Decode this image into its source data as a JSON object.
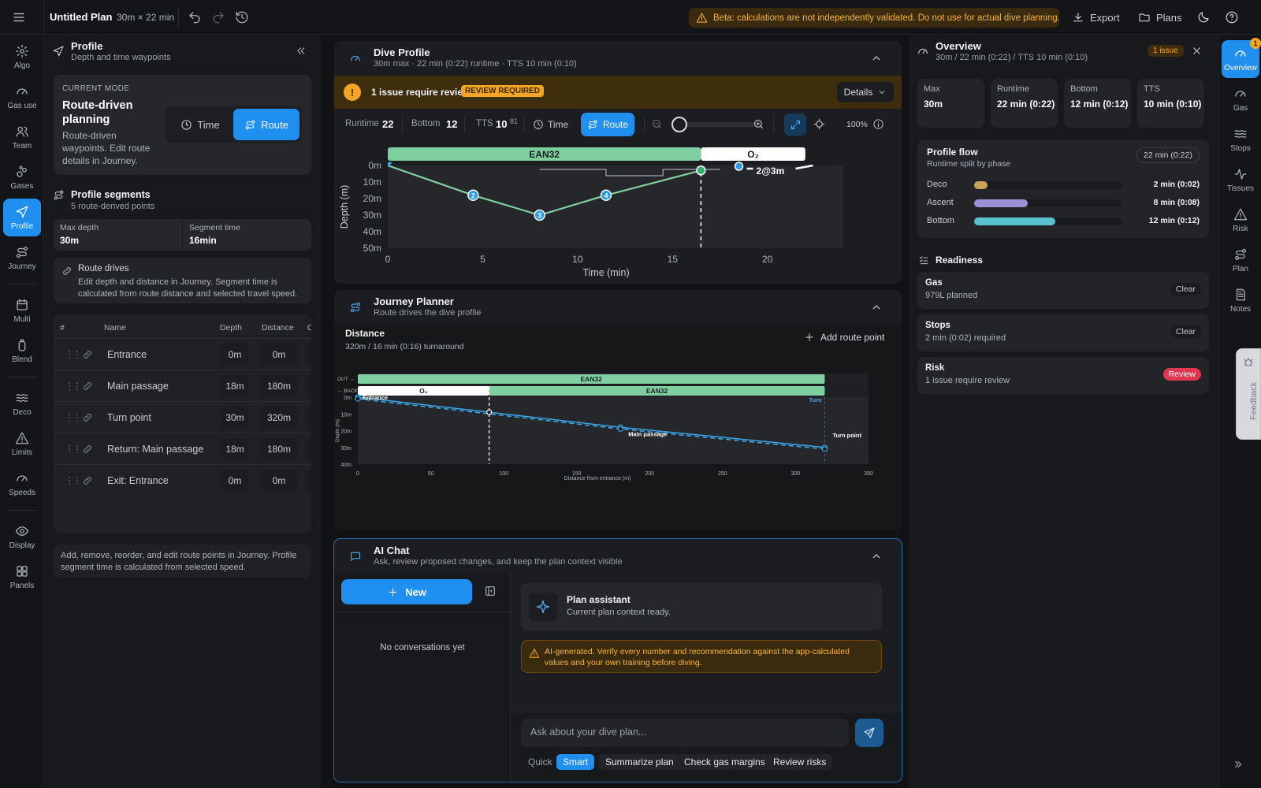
{
  "topbar": {
    "title": "Untitled Plan",
    "plan_meta": "30m × 22 min",
    "beta_warning": "Beta: calculations are not independently validated. Do not use for actual dive planning.",
    "export_label": "Export",
    "plans_label": "Plans"
  },
  "leftnav": [
    {
      "label": "Algo",
      "icon": "gear-icon"
    },
    {
      "label": "Gas use",
      "icon": "gauge-icon"
    },
    {
      "label": "Team",
      "icon": "team-icon"
    },
    {
      "label": "Gases",
      "icon": "bubbles-icon"
    },
    {
      "label": "Profile",
      "icon": "navigation-icon",
      "active": true
    },
    {
      "label": "Journey",
      "icon": "route-icon"
    },
    {
      "label": "Multi",
      "icon": "calendar-icon"
    },
    {
      "label": "Blend",
      "icon": "cylinder-icon"
    },
    {
      "label": "Deco",
      "icon": "waves-icon"
    },
    {
      "label": "Limits",
      "icon": "warning-icon"
    },
    {
      "label": "Speeds",
      "icon": "gauge-icon"
    },
    {
      "label": "Display",
      "icon": "eye-icon"
    },
    {
      "label": "Panels",
      "icon": "grid-icon"
    }
  ],
  "profile_panel": {
    "title": "Profile",
    "subtitle": "Depth and time waypoints",
    "mode_label": "CURRENT MODE",
    "mode_title": "Route-driven planning",
    "mode_desc": "Route-driven waypoints. Edit route details in Journey.",
    "time_btn": "Time",
    "route_btn": "Route",
    "segments_title": "Profile segments",
    "segments_sub": "5 route-derived points",
    "max_depth_label": "Max depth",
    "max_depth_value": "30m",
    "segment_time_label": "Segment time",
    "segment_time_value": "16min",
    "route_drives_title": "Route drives",
    "route_drives_desc": "Edit depth and distance in Journey. Segment time is calculated from route distance and selected travel speed.",
    "table_headers": {
      "num": "#",
      "name": "Name",
      "depth": "Depth",
      "distance": "Distance",
      "extra": "C"
    },
    "rows": [
      {
        "name": "Entrance",
        "depth": "0m",
        "distance": "0m"
      },
      {
        "name": "Main passage",
        "depth": "18m",
        "distance": "180m"
      },
      {
        "name": "Turn point",
        "depth": "30m",
        "distance": "320m"
      },
      {
        "name": "Return: Main passage",
        "depth": "18m",
        "distance": "180m"
      },
      {
        "name": "Exit: Entrance",
        "depth": "0m",
        "distance": "0m"
      }
    ],
    "footer_note": "Add, remove, reorder, and edit route points in Journey. Profile segment time is calculated from selected speed."
  },
  "dive_profile": {
    "title": "Dive Profile",
    "subtitle": "30m max · 22 min (0:22) runtime · TTS 10 min (0:10)",
    "issue_text": "1 issue require review",
    "review_badge": "REVIEW REQUIRED",
    "details_btn": "Details",
    "runtime_label": "Runtime",
    "runtime_value": "22",
    "bottom_label": "Bottom",
    "bottom_value": "12",
    "tts_label": "TTS",
    "tts_value": "10",
    "tts_sup": "81",
    "time_btn": "Time",
    "route_btn": "Route",
    "zoom_pct": "100%",
    "gas_bar": [
      {
        "label": "EAN32",
        "from": 0,
        "to": 16.5
      },
      {
        "label": "O₂",
        "from": 16.5,
        "to": 22
      }
    ],
    "stop_label": "2@3m"
  },
  "chart_data": [
    {
      "type": "line",
      "title": "",
      "xlabel": "Time (min)",
      "ylabel": "Depth (m)",
      "xlim": [
        0,
        24
      ],
      "ylim": [
        0,
        50
      ],
      "y_inverted": true,
      "x_ticks": [
        "0",
        "5",
        "10",
        "15",
        "20"
      ],
      "y_ticks": [
        "0m",
        "10m",
        "20m",
        "30m",
        "40m",
        "50m"
      ],
      "series": [
        {
          "values": [
            [
              0,
              0
            ],
            [
              4.5,
              18
            ],
            [
              8,
              30
            ],
            [
              11.5,
              18
            ],
            [
              16.5,
              3
            ]
          ],
          "point_labels": [
            "",
            "2",
            "3",
            "4",
            ""
          ]
        }
      ],
      "markers": [
        {
          "label": "2@3m",
          "x": 18.5,
          "y": 3
        }
      ],
      "vline_x": 16.5
    },
    {
      "type": "line",
      "title": "Distance",
      "xlabel": "Distance from entrance (m)",
      "ylabel": "Depth (m)",
      "xlim": [
        0,
        350
      ],
      "ylim": [
        0,
        40
      ],
      "y_inverted": true,
      "x_ticks": [
        "0",
        "50",
        "100",
        "150",
        "200",
        "250",
        "300",
        "350"
      ],
      "y_ticks": [
        "0m",
        "10m",
        "20m",
        "30m",
        "40m"
      ],
      "series": [
        {
          "name": "OUT",
          "values": [
            [
              0,
              0
            ],
            [
              180,
              18
            ],
            [
              320,
              30
            ]
          ]
        },
        {
          "name": "BACK",
          "values": [
            [
              0,
              1
            ],
            [
              180,
              19
            ],
            [
              320,
              31
            ]
          ]
        }
      ],
      "annotations": [
        {
          "label": "Entrance",
          "x": 0,
          "y": 0
        },
        {
          "label": "Main passage",
          "x": 180,
          "y": 18
        },
        {
          "label": "Turn point",
          "x": 320,
          "y": 30
        },
        {
          "label": "Turn",
          "x": 320,
          "y": 0
        }
      ],
      "gas_bands": [
        {
          "row": "OUT",
          "label": "EAN32",
          "from": 0,
          "to": 320
        },
        {
          "row": "BACK",
          "label": "O₂",
          "from": 0,
          "to": 90
        },
        {
          "row": "BACK",
          "label": "EAN32",
          "from": 90,
          "to": 320
        }
      ],
      "vline_x": 90
    }
  ],
  "journey": {
    "title": "Journey Planner",
    "subtitle": "Route drives the dive profile",
    "distance_title": "Distance",
    "distance_sub": "320m / 16 min (0:16) turnaround",
    "add_point": "Add route point",
    "row_out": "OUT →",
    "row_back": "← BACK"
  },
  "ai_chat": {
    "title": "AI Chat",
    "subtitle": "Ask, review proposed changes, and keep the plan context visible",
    "new_btn": "New",
    "no_conversations": "No conversations yet",
    "assistant_title": "Plan assistant",
    "assistant_sub": "Current plan context ready.",
    "ai_warning": "AI-generated. Verify every number and recommendation against the app-calculated values and your own training before diving.",
    "input_placeholder": "Ask about your dive plan...",
    "quick_label": "Quick",
    "smart_label": "Smart",
    "chips": [
      "Summarize plan",
      "Check gas margins",
      "Review risks"
    ]
  },
  "overview": {
    "title": "Overview",
    "subtitle": "30m / 22 min (0:22) / TTS 10 min (0:10)",
    "issue_badge": "1 issue",
    "stats": [
      {
        "label": "Max",
        "value": "30m"
      },
      {
        "label": "Runtime",
        "value": "22 min (0:22)"
      },
      {
        "label": "Bottom",
        "value": "12 min (0:12)"
      },
      {
        "label": "TTS",
        "value": "10 min (0:10)"
      }
    ],
    "flow_title": "Profile flow",
    "flow_sub": "Runtime split by phase",
    "flow_badge": "22 min (0:22)",
    "flow_rows": [
      {
        "label": "Deco",
        "value": "2 min (0:02)",
        "fraction": 0.09,
        "color": "#c9a25a"
      },
      {
        "label": "Ascent",
        "value": "8 min (0:08)",
        "fraction": 0.36,
        "color": "#9b8fd6"
      },
      {
        "label": "Bottom",
        "value": "12 min (0:12)",
        "fraction": 0.55,
        "color": "#58c3cf"
      }
    ],
    "readiness_title": "Readiness",
    "readiness": [
      {
        "title": "Gas",
        "sub": "979L planned",
        "badge": "Clear",
        "kind": "clear"
      },
      {
        "title": "Stops",
        "sub": "2 min (0:02) required",
        "badge": "Clear",
        "kind": "clear"
      },
      {
        "title": "Risk",
        "sub": "1 issue require review",
        "badge": "Review",
        "kind": "review"
      }
    ]
  },
  "rightnav": [
    {
      "label": "Overview",
      "icon": "gauge-icon",
      "active": true,
      "badge": "1"
    },
    {
      "label": "Gas",
      "icon": "gauge-icon"
    },
    {
      "label": "Stops",
      "icon": "waves-icon"
    },
    {
      "label": "Tissues",
      "icon": "pulse-icon"
    },
    {
      "label": "Risk",
      "icon": "warning-icon"
    },
    {
      "label": "Plan",
      "icon": "route-icon"
    },
    {
      "label": "Notes",
      "icon": "notes-icon"
    }
  ],
  "feedback_label": "Feedback",
  "colors": {
    "accent": "#1f8ff0",
    "ean32": "#7fcfa0",
    "warning": "#f5a524",
    "profile_line": "#7fcfa0",
    "journey_line": "#3aa7e8"
  }
}
